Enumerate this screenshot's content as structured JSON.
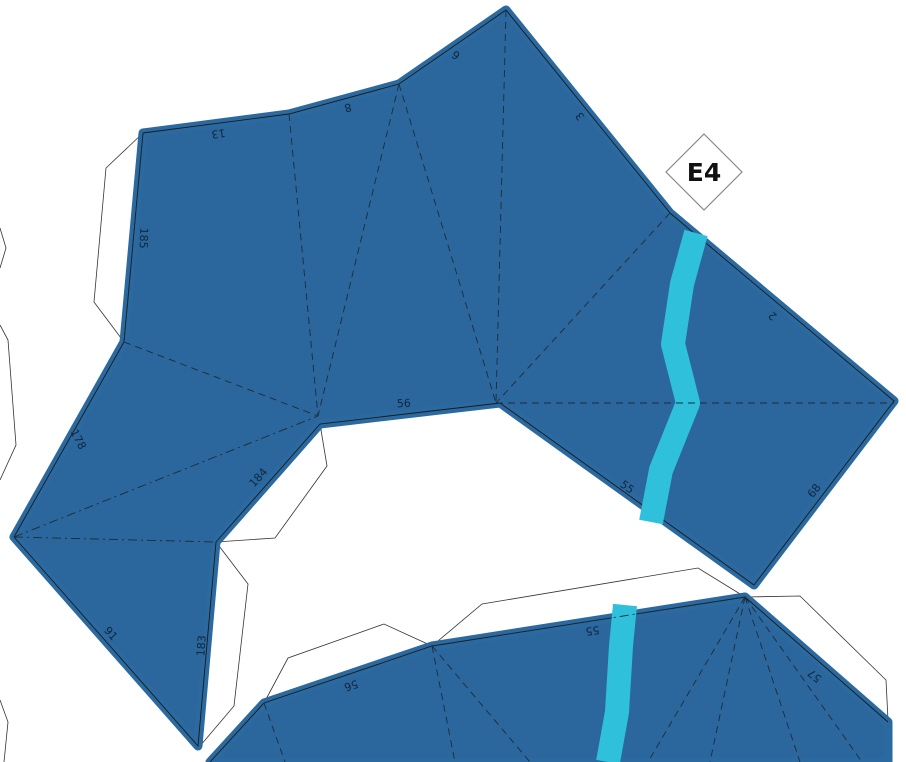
{
  "badge": {
    "label": "E4"
  },
  "edge_numbers": {
    "e13": "13",
    "e8": "8",
    "e6": "6",
    "e3": "3",
    "e2": "2",
    "e185": "185",
    "e56": "56",
    "e178": "178",
    "e184": "184",
    "e55a": "55",
    "e68": "68",
    "e91": "91",
    "e183": "183",
    "e55b": "55",
    "e56b": "56",
    "e57": "57"
  },
  "colors": {
    "piece_fill": "#2b679c",
    "stripe": "#2fc0dc",
    "background": "#ffffff"
  }
}
